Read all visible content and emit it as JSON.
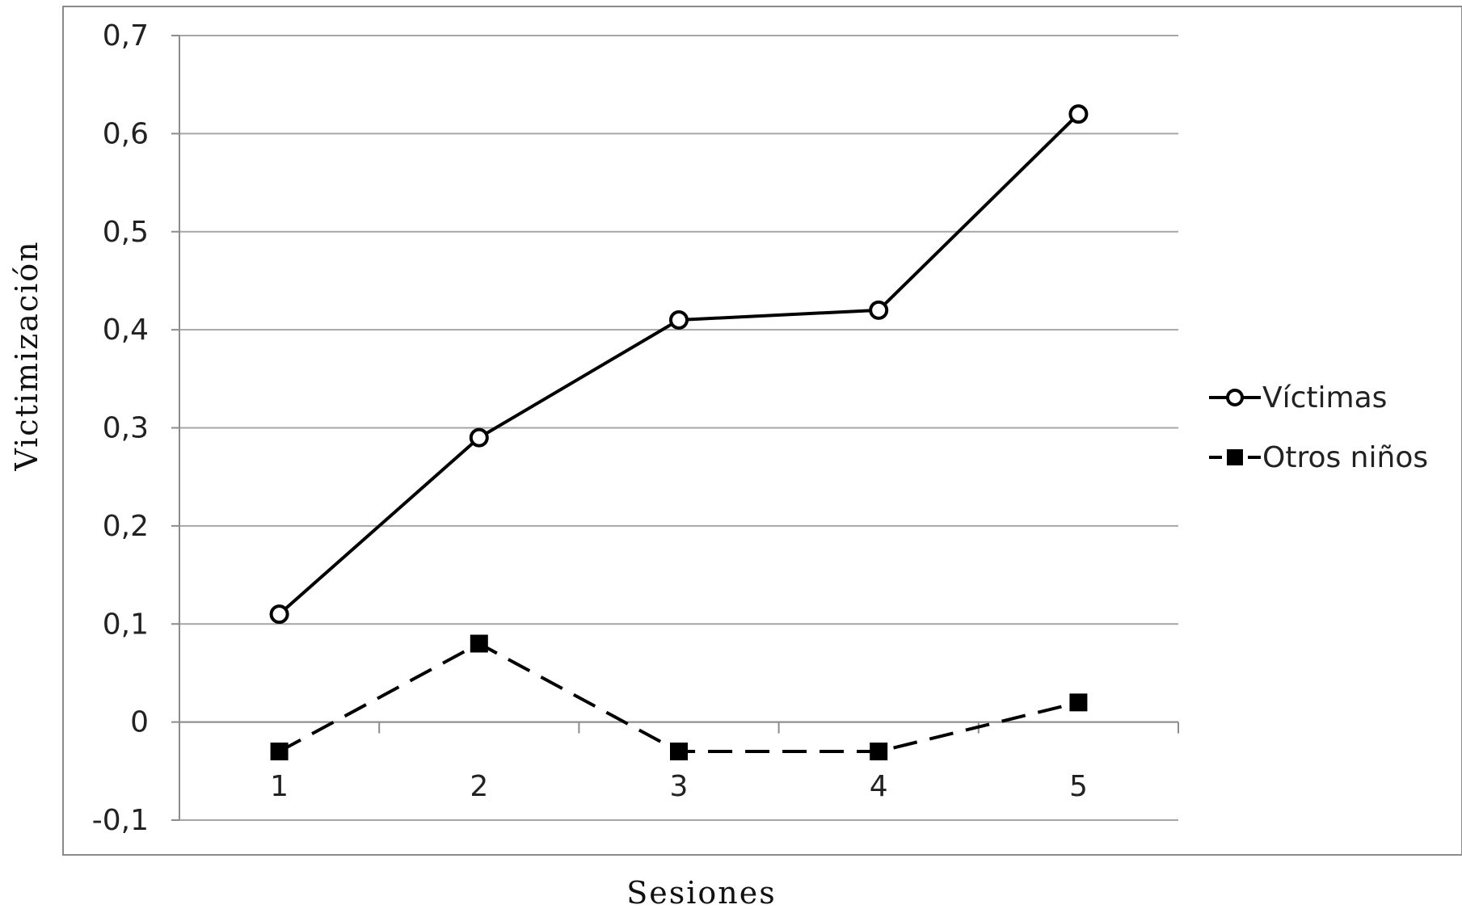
{
  "chart_data": {
    "type": "line",
    "title": "",
    "xlabel": "Sesiones",
    "ylabel": "Victimización",
    "categories": [
      "1",
      "2",
      "3",
      "4",
      "5"
    ],
    "ylim": [
      -0.1,
      0.7
    ],
    "yticks": [
      -0.1,
      0,
      0.1,
      0.2,
      0.3,
      0.4,
      0.5,
      0.6,
      0.7
    ],
    "ytick_labels": [
      "-0,1",
      "0",
      "0,1",
      "0,2",
      "0,3",
      "0,4",
      "0,5",
      "0,6",
      "0,7"
    ],
    "grid": true,
    "legend_position": "right",
    "series": [
      {
        "name": "Víctimas",
        "values": [
          0.11,
          0.29,
          0.41,
          0.42,
          0.62
        ],
        "marker": "circle-open",
        "line_style": "solid",
        "color": "#000000"
      },
      {
        "name": "Otros niños",
        "values": [
          -0.03,
          0.08,
          -0.03,
          -0.03,
          0.02
        ],
        "marker": "square-filled",
        "line_style": "dashed",
        "color": "#000000"
      }
    ]
  }
}
